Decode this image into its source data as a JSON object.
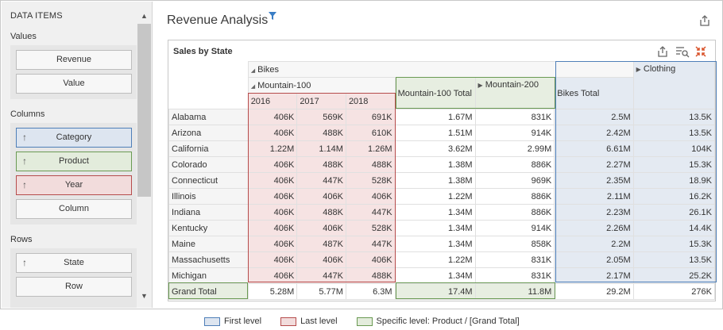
{
  "panel": {
    "title": "DATA ITEMS",
    "sections": {
      "values": {
        "title": "Values",
        "fields": [
          "Revenue",
          "Value"
        ]
      },
      "columns": {
        "title": "Columns",
        "fields": [
          "Category",
          "Product",
          "Year",
          "Column"
        ]
      },
      "rows": {
        "title": "Rows",
        "fields": [
          "State",
          "Row"
        ]
      }
    }
  },
  "dashboard": {
    "title": "Revenue Analysis"
  },
  "pivot": {
    "title": "Sales by State",
    "headers": {
      "bikes": "Bikes",
      "mountain100": "Mountain-100",
      "years": [
        "2016",
        "2017",
        "2018"
      ],
      "mountain100_total": "Mountain-100 Total",
      "mountain200": "Mountain-200",
      "bikes_total": "Bikes Total",
      "clothing": "Clothing"
    },
    "rows": [
      {
        "state": "Alabama",
        "v": [
          "406K",
          "569K",
          "691K",
          "1.67M",
          "831K",
          "2.5M",
          "13.5K"
        ]
      },
      {
        "state": "Arizona",
        "v": [
          "406K",
          "488K",
          "610K",
          "1.51M",
          "914K",
          "2.42M",
          "13.5K"
        ]
      },
      {
        "state": "California",
        "v": [
          "1.22M",
          "1.14M",
          "1.26M",
          "3.62M",
          "2.99M",
          "6.61M",
          "104K"
        ]
      },
      {
        "state": "Colorado",
        "v": [
          "406K",
          "488K",
          "488K",
          "1.38M",
          "886K",
          "2.27M",
          "15.3K"
        ]
      },
      {
        "state": "Connecticut",
        "v": [
          "406K",
          "447K",
          "528K",
          "1.38M",
          "969K",
          "2.35M",
          "18.9K"
        ]
      },
      {
        "state": "Illinois",
        "v": [
          "406K",
          "406K",
          "406K",
          "1.22M",
          "886K",
          "2.11M",
          "16.2K"
        ]
      },
      {
        "state": "Indiana",
        "v": [
          "406K",
          "488K",
          "447K",
          "1.34M",
          "886K",
          "2.23M",
          "26.1K"
        ]
      },
      {
        "state": "Kentucky",
        "v": [
          "406K",
          "406K",
          "528K",
          "1.34M",
          "914K",
          "2.26M",
          "14.4K"
        ]
      },
      {
        "state": "Maine",
        "v": [
          "406K",
          "487K",
          "447K",
          "1.34M",
          "858K",
          "2.2M",
          "15.3K"
        ]
      },
      {
        "state": "Massachusetts",
        "v": [
          "406K",
          "406K",
          "406K",
          "1.22M",
          "831K",
          "2.05M",
          "13.5K"
        ]
      },
      {
        "state": "Michigan",
        "v": [
          "406K",
          "447K",
          "488K",
          "1.34M",
          "831K",
          "2.17M",
          "25.2K"
        ]
      }
    ],
    "grand_total": {
      "label": "Grand Total",
      "v": [
        "5.28M",
        "5.77M",
        "6.3M",
        "17.4M",
        "11.8M",
        "29.2M",
        "276K"
      ]
    }
  },
  "legend": {
    "first": "First level",
    "last": "Last level",
    "specific": "Specific level: Product / [Grand Total]"
  },
  "colors": {
    "first_level": "#4f7fb8",
    "last_level": "#b64c4c",
    "specific_level": "#6a9a53",
    "accent": "#3a7ec6"
  }
}
